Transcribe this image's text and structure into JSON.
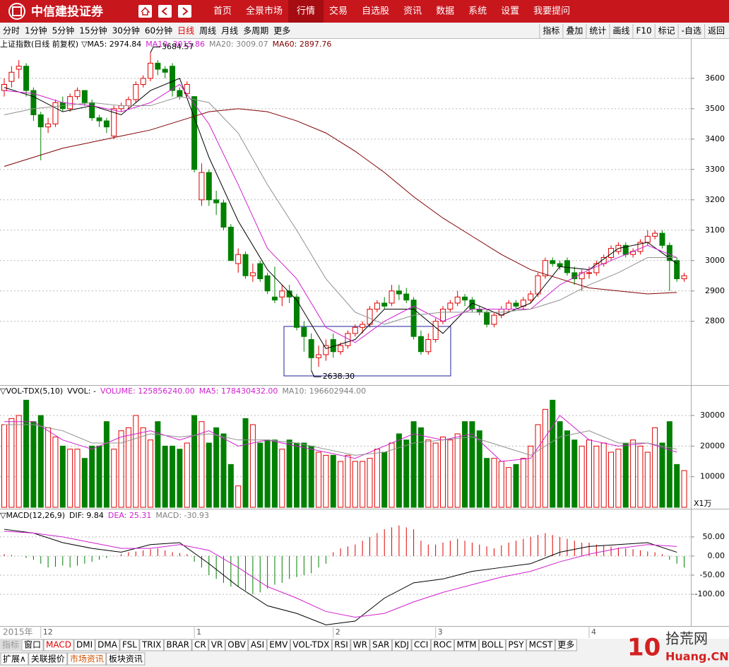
{
  "header": {
    "logo": "中信建投证券",
    "nav": [
      "首页",
      "全景市场",
      "行情",
      "交易",
      "自选股",
      "资讯",
      "数据",
      "系统",
      "设置",
      "我要提问"
    ],
    "active_nav": 2
  },
  "toolbar": {
    "periods": [
      "分时",
      "1分钟",
      "5分钟",
      "15分钟",
      "30分钟",
      "60分钟",
      "日线",
      "周线",
      "月线",
      "多周期",
      "更多"
    ],
    "active_period": 6,
    "tools": [
      "指标",
      "叠加",
      "统计",
      "画线",
      "F10",
      "标记",
      "-自选",
      "返回"
    ]
  },
  "chart_data": [
    {
      "type": "candlestick",
      "title": "上证指数(日线 前复权)",
      "up_color": "#e00000",
      "down_color": "#008000",
      "legend": [
        {
          "text": "▽MA5: 2974.84",
          "color": "#000000"
        },
        {
          "text": "MA10: 3015.86",
          "color": "#d020d0"
        },
        {
          "text": "MA20: 3009.07",
          "color": "#808080"
        },
        {
          "text": "MA60: 2897.76",
          "color": "#800000"
        }
      ],
      "ylim": [
        2590,
        3730
      ],
      "yticks": [
        2800,
        2900,
        3000,
        3100,
        3200,
        3300,
        3400,
        3500,
        3600
      ],
      "grid": true,
      "year_label": "2015年",
      "x_labels": [
        {
          "value": 5,
          "label": "12"
        },
        {
          "value": 26,
          "label": "1"
        },
        {
          "value": 45,
          "label": "2"
        },
        {
          "value": 59,
          "label": "3"
        },
        {
          "value": 80,
          "label": "4"
        }
      ],
      "annotations": [
        {
          "value": 3684.57,
          "label": "3684.57"
        },
        {
          "value": 2638.3,
          "label": "2638.30"
        }
      ],
      "candles": [
        [
          3560,
          3600,
          3540,
          3580
        ],
        [
          3590,
          3640,
          3570,
          3620
        ],
        [
          3630,
          3660,
          3600,
          3640
        ],
        [
          3640,
          3650,
          3540,
          3560
        ],
        [
          3560,
          3570,
          3460,
          3480
        ],
        [
          3480,
          3490,
          3330,
          3440
        ],
        [
          3440,
          3470,
          3420,
          3450
        ],
        [
          3450,
          3530,
          3440,
          3520
        ],
        [
          3520,
          3540,
          3490,
          3500
        ],
        [
          3500,
          3550,
          3490,
          3540
        ],
        [
          3540,
          3570,
          3530,
          3560
        ],
        [
          3560,
          3560,
          3510,
          3520
        ],
        [
          3520,
          3530,
          3460,
          3470
        ],
        [
          3470,
          3480,
          3440,
          3460
        ],
        [
          3460,
          3470,
          3420,
          3440
        ],
        [
          3410,
          3510,
          3400,
          3500
        ],
        [
          3500,
          3520,
          3490,
          3510
        ],
        [
          3510,
          3540,
          3500,
          3530
        ],
        [
          3530,
          3590,
          3520,
          3580
        ],
        [
          3580,
          3610,
          3570,
          3600
        ],
        [
          3600,
          3684.57,
          3590,
          3650
        ],
        [
          3650,
          3660,
          3610,
          3630
        ],
        [
          3630,
          3640,
          3600,
          3620
        ],
        [
          3640,
          3650,
          3540,
          3560
        ],
        [
          3560,
          3570,
          3530,
          3540
        ],
        [
          3550,
          3590,
          3540,
          3580
        ],
        [
          3540,
          3540,
          3290,
          3300
        ],
        [
          3200,
          3320,
          3180,
          3290
        ],
        [
          3290,
          3300,
          3180,
          3200
        ],
        [
          3200,
          3230,
          3150,
          3190
        ],
        [
          3190,
          3200,
          3100,
          3110
        ],
        [
          3110,
          3120,
          3000,
          3000
        ],
        [
          2990,
          3040,
          2960,
          3020
        ],
        [
          3020,
          3030,
          2940,
          2950
        ],
        [
          2950,
          2990,
          2930,
          2960
        ],
        [
          2990,
          3000,
          2930,
          2940
        ],
        [
          2950,
          2960,
          2890,
          2900
        ],
        [
          2880,
          2980,
          2860,
          2870
        ],
        [
          2880,
          2920,
          2850,
          2900
        ],
        [
          2900,
          2920,
          2860,
          2880
        ],
        [
          2880,
          2890,
          2770,
          2780
        ],
        [
          2780,
          2800,
          2700,
          2750
        ],
        [
          2740,
          2760,
          2638.3,
          2680
        ],
        [
          2680,
          2720,
          2650,
          2690
        ],
        [
          2690,
          2740,
          2670,
          2720
        ],
        [
          2740,
          2760,
          2680,
          2700
        ],
        [
          2700,
          2730,
          2690,
          2720
        ],
        [
          2720,
          2770,
          2710,
          2760
        ],
        [
          2760,
          2790,
          2750,
          2780
        ],
        [
          2780,
          2800,
          2760,
          2790
        ],
        [
          2790,
          2850,
          2780,
          2840
        ],
        [
          2840,
          2870,
          2830,
          2860
        ],
        [
          2860,
          2880,
          2840,
          2850
        ],
        [
          2860,
          2920,
          2850,
          2900
        ],
        [
          2900,
          2920,
          2870,
          2890
        ],
        [
          2890,
          2910,
          2860,
          2870
        ],
        [
          2870,
          2880,
          2740,
          2750
        ],
        [
          2750,
          2770,
          2690,
          2700
        ],
        [
          2700,
          2760,
          2690,
          2740
        ],
        [
          2740,
          2810,
          2730,
          2800
        ],
        [
          2800,
          2850,
          2790,
          2840
        ],
        [
          2840,
          2870,
          2830,
          2860
        ],
        [
          2860,
          2900,
          2850,
          2880
        ],
        [
          2880,
          2890,
          2850,
          2870
        ],
        [
          2870,
          2880,
          2830,
          2840
        ],
        [
          2840,
          2850,
          2820,
          2830
        ],
        [
          2830,
          2840,
          2780,
          2790
        ],
        [
          2790,
          2830,
          2780,
          2820
        ],
        [
          2820,
          2850,
          2810,
          2840
        ],
        [
          2840,
          2870,
          2830,
          2860
        ],
        [
          2860,
          2870,
          2840,
          2850
        ],
        [
          2850,
          2880,
          2840,
          2870
        ],
        [
          2870,
          2900,
          2860,
          2890
        ],
        [
          2890,
          2960,
          2880,
          2950
        ],
        [
          2950,
          3010,
          2940,
          3000
        ],
        [
          3000,
          3010,
          2980,
          2990
        ],
        [
          2990,
          3000,
          2970,
          2980
        ],
        [
          3000,
          3010,
          2950,
          2960
        ],
        [
          2960,
          2980,
          2920,
          2940
        ],
        [
          2940,
          2970,
          2900,
          2960
        ],
        [
          2960,
          2980,
          2940,
          2960
        ],
        [
          2960,
          3000,
          2950,
          2990
        ],
        [
          2990,
          3020,
          2980,
          3010
        ],
        [
          3010,
          3050,
          3000,
          3040
        ],
        [
          3030,
          3060,
          3020,
          3050
        ],
        [
          3050,
          3060,
          3010,
          3020
        ],
        [
          3020,
          3040,
          3010,
          3030
        ],
        [
          3030,
          3070,
          3020,
          3060
        ],
        [
          3060,
          3100,
          3050,
          3080
        ],
        [
          3080,
          3100,
          3070,
          3090
        ],
        [
          3090,
          3100,
          3040,
          3050
        ],
        [
          3050,
          3060,
          2900,
          3000
        ],
        [
          3000,
          3010,
          2930,
          2940
        ],
        [
          2940,
          2960,
          2930,
          2950
        ]
      ],
      "line_x": [
        0,
        4,
        8,
        12,
        16,
        20,
        24,
        28,
        32,
        36,
        40,
        44,
        48,
        52,
        56,
        60,
        64,
        68,
        72,
        76,
        80,
        84,
        88,
        92
      ],
      "series": [
        {
          "name": "MA5",
          "color": "#000000",
          "values": [
            3570,
            3540,
            3490,
            3510,
            3480,
            3560,
            3600,
            3340,
            3130,
            2970,
            2870,
            2710,
            2740,
            2840,
            2840,
            2760,
            2860,
            2820,
            2860,
            2980,
            2970,
            3040,
            3060,
            2990
          ]
        },
        {
          "name": "MA10",
          "color": "#d020d0",
          "values": [
            3560,
            3550,
            3520,
            3510,
            3490,
            3520,
            3580,
            3450,
            3250,
            3040,
            2940,
            2780,
            2730,
            2800,
            2850,
            2800,
            2840,
            2840,
            2840,
            2920,
            2970,
            3010,
            3050,
            3010
          ]
        },
        {
          "name": "MA20",
          "color": "#909090",
          "values": [
            3480,
            3500,
            3510,
            3520,
            3510,
            3510,
            3540,
            3520,
            3420,
            3250,
            3100,
            2940,
            2830,
            2790,
            2820,
            2830,
            2830,
            2830,
            2840,
            2870,
            2920,
            2960,
            3010,
            3010
          ]
        },
        {
          "name": "MA60",
          "color": "#800000",
          "values": [
            3310,
            3340,
            3370,
            3390,
            3410,
            3430,
            3460,
            3490,
            3500,
            3490,
            3460,
            3420,
            3360,
            3290,
            3210,
            3140,
            3080,
            3020,
            2970,
            2940,
            2910,
            2900,
            2890,
            2895
          ]
        }
      ]
    },
    {
      "type": "volume",
      "title": "▽VOL-TDX(5,10)",
      "legend": [
        {
          "text": "VVOL: -",
          "color": "#000000"
        },
        {
          "text": "VOLUME: 125856240.00",
          "color": "#d020d0"
        },
        {
          "text": "MA5: 178430432.00",
          "color": "#d020d0"
        },
        {
          "text": "MA10: 196602944.00",
          "color": "#808080"
        }
      ],
      "unit_label": "X1万",
      "ylim": [
        0,
        39700
      ],
      "yticks": [
        10000,
        20000,
        30000
      ],
      "values": [
        27000,
        29000,
        30000,
        35000,
        28000,
        30000,
        26000,
        23000,
        20000,
        19000,
        19000,
        16000,
        20000,
        20000,
        28000,
        19000,
        25000,
        26000,
        30000,
        26000,
        22000,
        28000,
        20000,
        20000,
        19000,
        21000,
        30000,
        28000,
        21000,
        26000,
        24000,
        14000,
        7000,
        29000,
        27000,
        21000,
        22000,
        22000,
        19000,
        22000,
        21000,
        21000,
        20000,
        18000,
        17000,
        17000,
        15000,
        17000,
        15000,
        15000,
        16000,
        19000,
        18000,
        21000,
        24000,
        22000,
        28000,
        26000,
        22000,
        21000,
        23000,
        22000,
        24000,
        28000,
        28000,
        25000,
        16000,
        16000,
        15000,
        13000,
        14000,
        16000,
        20000,
        27000,
        32000,
        35000,
        28000,
        25000,
        22000,
        20000,
        22000,
        20000,
        21000,
        18000,
        19000,
        21000,
        22000,
        20000,
        18000,
        26000,
        21000,
        28000,
        14000,
        12000
      ],
      "line_x": [
        0,
        4,
        8,
        12,
        16,
        20,
        24,
        28,
        32,
        36,
        40,
        44,
        48,
        52,
        56,
        60,
        64,
        68,
        72,
        76,
        80,
        84,
        88,
        92
      ],
      "series": [
        {
          "name": "MA5",
          "color": "#d020d0",
          "values": [
            28000,
            28000,
            22000,
            19000,
            23000,
            25000,
            22000,
            25000,
            20000,
            22000,
            20000,
            18000,
            16000,
            20000,
            24000,
            22000,
            24000,
            15000,
            16000,
            30000,
            22000,
            20000,
            21000,
            18000
          ]
        },
        {
          "name": "MA10",
          "color": "#909090",
          "values": [
            27000,
            27000,
            25000,
            21000,
            21000,
            24000,
            23000,
            24000,
            22000,
            22000,
            21000,
            19000,
            17000,
            18000,
            21000,
            22000,
            23000,
            20000,
            17000,
            23000,
            25000,
            21000,
            21000,
            19000
          ]
        }
      ]
    },
    {
      "type": "macd",
      "title": "▽MACD(12,26,9)",
      "legend": [
        {
          "text": "DIF: 9.84",
          "color": "#000000"
        },
        {
          "text": "DEA: 25.31",
          "color": "#d020d0"
        },
        {
          "text": "MACD: -30.93",
          "color": "#808080"
        }
      ],
      "ylim": [
        -183,
        120
      ],
      "yticks": [
        {
          "value": 50,
          "label": "50.00"
        },
        {
          "value": 0,
          "label": "0.00"
        },
        {
          "value": -50,
          "label": "-50.00"
        },
        {
          "value": -100,
          "label": "-100.00"
        }
      ],
      "values": [
        5,
        3,
        0,
        -5,
        -10,
        -20,
        -30,
        -28,
        -25,
        -30,
        -25,
        -20,
        -15,
        -10,
        -5,
        0,
        5,
        10,
        12,
        15,
        18,
        20,
        15,
        10,
        8,
        5,
        -15,
        -30,
        -50,
        -60,
        -70,
        -80,
        -80,
        -90,
        -100,
        -95,
        -85,
        -75,
        -70,
        -60,
        -55,
        -50,
        -45,
        -30,
        -20,
        10,
        20,
        25,
        30,
        40,
        50,
        60,
        70,
        75,
        80,
        75,
        70,
        40,
        30,
        30,
        35,
        40,
        45,
        40,
        35,
        30,
        25,
        20,
        28,
        35,
        40,
        45,
        50,
        55,
        60,
        55,
        50,
        45,
        40,
        35,
        35,
        30,
        28,
        25,
        22,
        20,
        18,
        15,
        12,
        10,
        5,
        -10,
        -20,
        -30
      ],
      "line_x": [
        0,
        4,
        8,
        12,
        16,
        20,
        24,
        28,
        32,
        36,
        40,
        44,
        48,
        52,
        56,
        60,
        64,
        68,
        72,
        76,
        80,
        84,
        88,
        92
      ],
      "series": [
        {
          "name": "DIF",
          "color": "#000000",
          "values": [
            70,
            60,
            35,
            20,
            10,
            30,
            35,
            -20,
            -80,
            -130,
            -150,
            -180,
            -170,
            -110,
            -70,
            -60,
            -40,
            -30,
            -20,
            10,
            25,
            30,
            35,
            10
          ]
        },
        {
          "name": "DEA",
          "color": "#d020d0",
          "values": [
            65,
            60,
            50,
            35,
            20,
            20,
            30,
            15,
            -30,
            -80,
            -110,
            -145,
            -160,
            -150,
            -120,
            -95,
            -75,
            -55,
            -40,
            -15,
            5,
            20,
            30,
            25
          ]
        }
      ]
    }
  ],
  "bottom": {
    "indicator_label": "指标",
    "indicator_tabs": [
      "窗口",
      "MACD",
      "DMI",
      "DMA",
      "FSL",
      "TRIX",
      "BRAR",
      "CR",
      "VR",
      "OBV",
      "ASI",
      "EMV",
      "VOL-TDX",
      "RSI",
      "WR",
      "SAR",
      "KDJ",
      "CCI",
      "ROC",
      "MTM",
      "BOLL",
      "PSY",
      "MCST",
      "更多"
    ],
    "active_tab": 1,
    "info_tabs": [
      "扩展∧",
      "关联报价",
      "市场资讯",
      "板块资讯"
    ]
  },
  "watermark": {
    "logo": "10",
    "text": "拾荒网",
    "domain": "Huang.CN"
  }
}
